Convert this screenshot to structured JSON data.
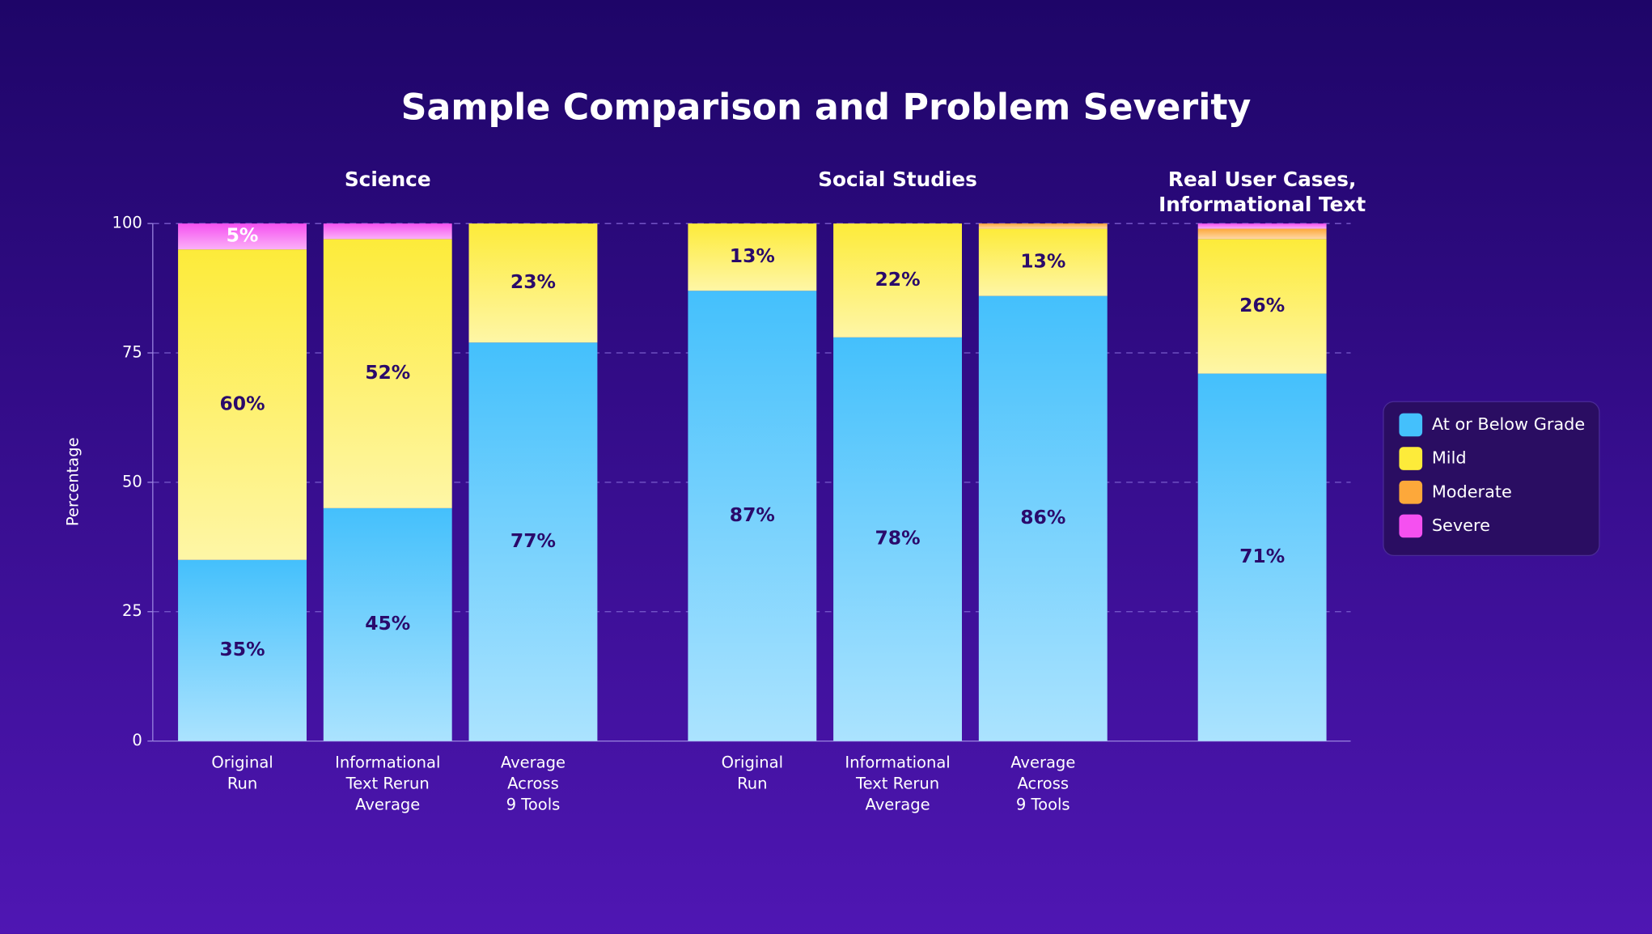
{
  "chart_data": {
    "type": "stacked_bar",
    "title": "Sample Comparison and Problem Severity",
    "y_label": "Percentage",
    "groups": [
      {
        "label": [
          "Science"
        ],
        "categories": [
          [
            "Original",
            "Run"
          ],
          [
            "Informational",
            "Text Rerun",
            "Average"
          ],
          [
            "Average",
            "Across",
            "9 Tools"
          ]
        ]
      },
      {
        "label": [
          "Social Studies"
        ],
        "categories": [
          [
            "Original",
            "Run"
          ],
          [
            "Informational",
            "Text Rerun",
            "Average"
          ],
          [
            "Average",
            "Across",
            "9 Tools"
          ]
        ]
      },
      {
        "label": [
          "Real User Cases,",
          "Informational Text"
        ],
        "categories": [
          null
        ]
      }
    ],
    "series": [
      {
        "name": "At or Below Grade",
        "color": "#44c0fc",
        "values": [
          35,
          45,
          77,
          87,
          78,
          86,
          71
        ],
        "value_labels": [
          "35%",
          "45%",
          "77%",
          "87%",
          "78%",
          "86%",
          "71%"
        ]
      },
      {
        "name": "Mild",
        "color": "#fdeb3a",
        "values": [
          60,
          52,
          23,
          13,
          22,
          13,
          26
        ],
        "value_labels": [
          "60%",
          "52%",
          "23%",
          "13%",
          "22%",
          "13%",
          "26%"
        ]
      },
      {
        "name": "Moderate",
        "color": "#fda83a",
        "values": [
          0,
          0,
          0,
          0,
          0,
          1,
          2
        ],
        "value_labels": [
          null,
          null,
          null,
          null,
          null,
          null,
          null
        ]
      },
      {
        "name": "Severe",
        "color": "#f550f0",
        "values": [
          5,
          3,
          0,
          0,
          0,
          0,
          1
        ],
        "value_labels": [
          "5%",
          null,
          null,
          null,
          null,
          null,
          null
        ]
      }
    ],
    "ylim": [
      0,
      100
    ],
    "yticks": [
      0,
      25,
      50,
      75,
      100
    ],
    "grid": true,
    "legend": "right"
  }
}
